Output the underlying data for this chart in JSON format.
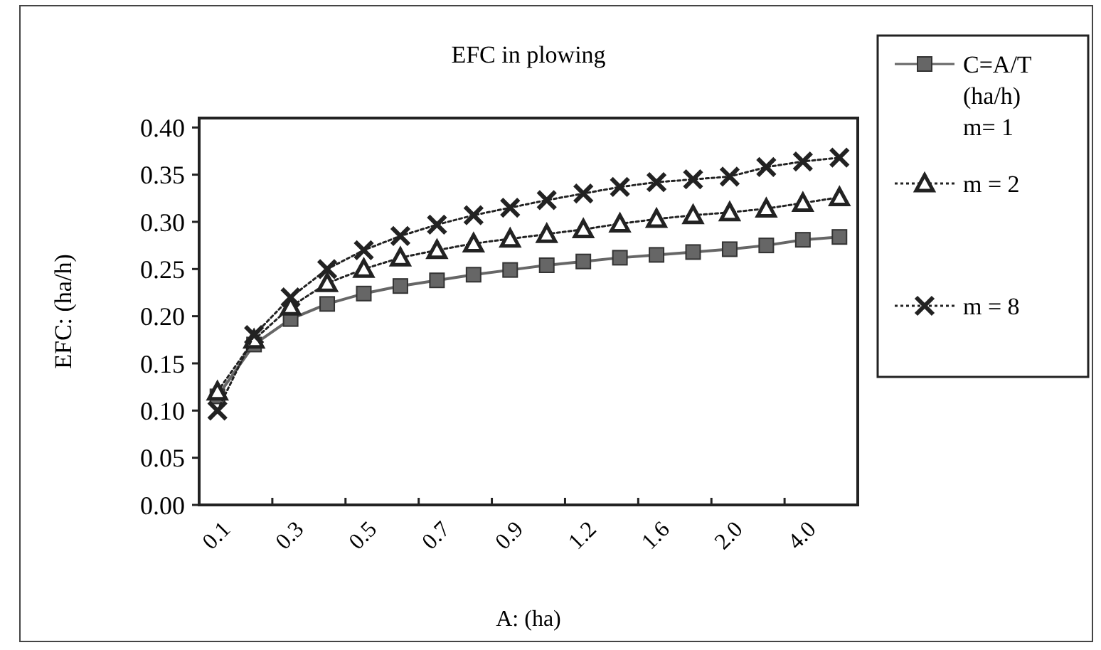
{
  "chart_data": {
    "type": "line",
    "title": "EFC in plowing",
    "xlabel": "A: (ha)",
    "ylabel": "EFC: (ha/h)",
    "categories": [
      "0.1",
      null,
      "0.3",
      null,
      "0.5",
      null,
      "0.7",
      null,
      "0.9",
      null,
      "1.2",
      null,
      "1.6",
      null,
      "2.0",
      null,
      "4.0",
      null
    ],
    "ylim": [
      0,
      0.41
    ],
    "yticks": [
      {
        "value": 0,
        "label": "0.00"
      },
      {
        "value": 0.05,
        "label": "0.05"
      },
      {
        "value": 0.1,
        "label": "0.10"
      },
      {
        "value": 0.15,
        "label": "0.15"
      },
      {
        "value": 0.2,
        "label": "0.20"
      },
      {
        "value": 0.25,
        "label": "0.25"
      },
      {
        "value": 0.3,
        "label": "0.30"
      },
      {
        "value": 0.35,
        "label": "0.35"
      },
      {
        "value": 0.4,
        "label": "0.40"
      }
    ],
    "grid": false,
    "legend": "top right",
    "series": [
      {
        "name": "C=A/T (ha/h) m= 1",
        "color": "#666666",
        "marker": "square",
        "line_style": "solid",
        "values": [
          0.115,
          0.17,
          0.197,
          0.213,
          0.224,
          0.232,
          0.238,
          0.244,
          0.249,
          0.254,
          0.258,
          0.262,
          0.265,
          0.268,
          0.271,
          0.275,
          0.281,
          0.284
        ]
      },
      {
        "name": "m = 2",
        "color": "#222222",
        "marker": "triangle",
        "line_style": "dotted",
        "values": [
          0.12,
          0.175,
          0.21,
          0.235,
          0.25,
          0.262,
          0.27,
          0.277,
          0.282,
          0.287,
          0.292,
          0.298,
          0.303,
          0.307,
          0.31,
          0.314,
          0.32,
          0.326
        ]
      },
      {
        "name": "m = 8",
        "color": "#222222",
        "marker": "cross",
        "line_style": "dotted",
        "values": [
          0.1,
          0.18,
          0.22,
          0.25,
          0.27,
          0.285,
          0.297,
          0.307,
          0.315,
          0.323,
          0.33,
          0.337,
          0.342,
          0.345,
          0.348,
          0.358,
          0.364,
          0.368
        ]
      }
    ]
  }
}
